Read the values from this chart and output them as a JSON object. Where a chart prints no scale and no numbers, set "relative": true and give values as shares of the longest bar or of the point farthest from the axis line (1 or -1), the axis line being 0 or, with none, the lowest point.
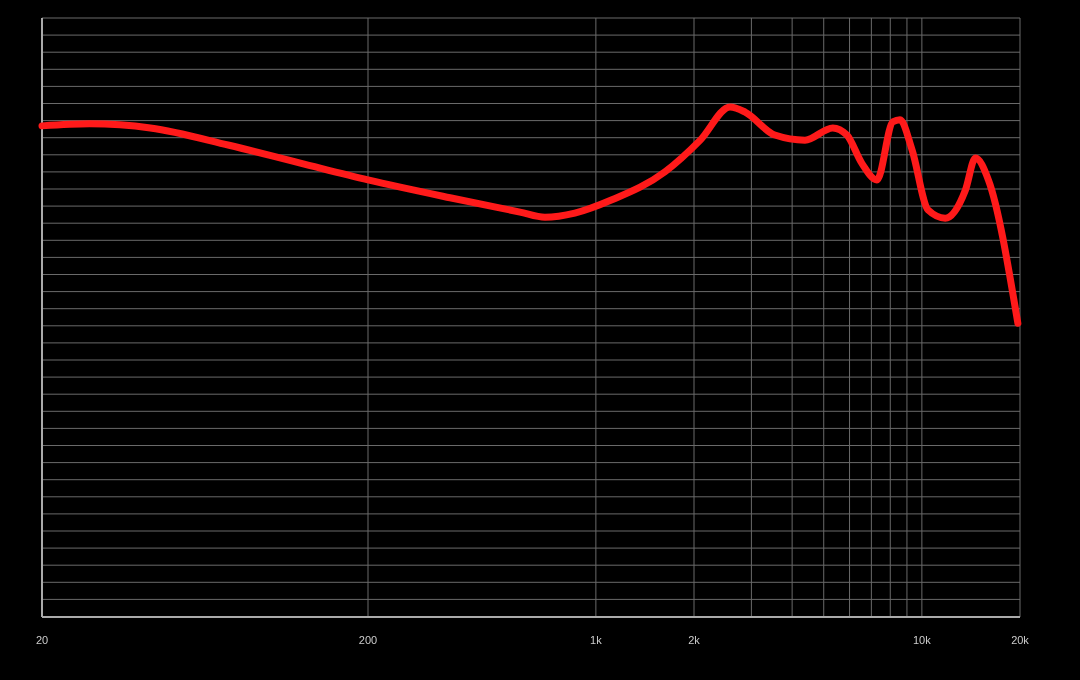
{
  "chart_data": {
    "type": "line",
    "relative": true,
    "log": "x",
    "grid": true,
    "xlim": [
      20,
      20000
    ],
    "xticks": [
      20,
      200,
      {
        "value": 1000,
        "label": "1k"
      },
      {
        "value": 2000,
        "label": "2k"
      },
      {
        "value": 3000,
        "label": null
      },
      {
        "value": 4000,
        "label": null
      },
      {
        "value": 5000,
        "label": null
      },
      {
        "value": 6000,
        "label": null
      },
      {
        "value": 7000,
        "label": null
      },
      {
        "value": 8000,
        "label": null
      },
      {
        "value": 9000,
        "label": null
      },
      {
        "value": 10000,
        "label": "10k"
      },
      {
        "value": 20000,
        "label": "20k"
      }
    ],
    "x": [
      20,
      28,
      43,
      75,
      124,
      200,
      357,
      585,
      698,
      862,
      1120,
      1630,
      2090,
      2580,
      2870,
      3540,
      4380,
      5330,
      5890,
      6540,
      7280,
      8150,
      8570,
      9330,
      10450,
      11800,
      13600,
      14600,
      16000,
      19700
    ],
    "series": [
      {
        "color": "#ff1a1a",
        "values": [
          0.963,
          0.967,
          0.959,
          0.925,
          0.89,
          0.857,
          0.822,
          0.794,
          0.784,
          0.792,
          0.818,
          0.873,
          0.935,
          1,
          0.99,
          0.945,
          0.935,
          0.959,
          0.945,
          0.89,
          0.857,
          0.971,
          0.975,
          0.916,
          0.798,
          0.782,
          0.837,
          0.9,
          0.857,
          0.576
        ]
      }
    ]
  }
}
